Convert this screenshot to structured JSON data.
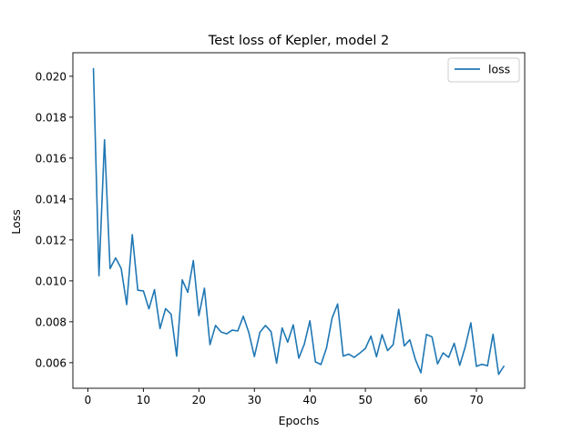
{
  "chart_data": {
    "type": "line",
    "title": "Test loss of Kepler, model 2",
    "xlabel": "Epochs",
    "ylabel": "Loss",
    "xlim": [
      -2.7,
      78.7
    ],
    "ylim": [
      0.00475,
      0.02115
    ],
    "xticks": [
      0,
      10,
      20,
      30,
      40,
      50,
      60,
      70
    ],
    "yticks": [
      0.006,
      0.008,
      0.01,
      0.012,
      0.014,
      0.016,
      0.018,
      0.02
    ],
    "ytick_labels": [
      "0.006",
      "0.008",
      "0.010",
      "0.012",
      "0.014",
      "0.016",
      "0.018",
      "0.020"
    ],
    "grid": false,
    "legend_position": "top-right",
    "series": [
      {
        "name": "loss",
        "color": "#1f77b4",
        "x": [
          1,
          2,
          3,
          4,
          5,
          6,
          7,
          8,
          9,
          10,
          11,
          12,
          13,
          14,
          15,
          16,
          17,
          18,
          19,
          20,
          21,
          22,
          23,
          24,
          25,
          26,
          27,
          28,
          29,
          30,
          31,
          32,
          33,
          34,
          35,
          36,
          37,
          38,
          39,
          40,
          41,
          42,
          43,
          44,
          45,
          46,
          47,
          48,
          49,
          50,
          51,
          52,
          53,
          54,
          55,
          56,
          57,
          58,
          59,
          60,
          61,
          62,
          63,
          64,
          65,
          66,
          67,
          68,
          69,
          70,
          71,
          72,
          73,
          74,
          75
        ],
        "values": [
          0.0204,
          0.01025,
          0.0169,
          0.0106,
          0.01112,
          0.01061,
          0.00884,
          0.01226,
          0.00954,
          0.00951,
          0.00863,
          0.00957,
          0.00767,
          0.00864,
          0.00837,
          0.00632,
          0.01005,
          0.00944,
          0.01099,
          0.0083,
          0.00964,
          0.00688,
          0.00782,
          0.0075,
          0.00741,
          0.00759,
          0.00755,
          0.00827,
          0.00747,
          0.0063,
          0.00749,
          0.00782,
          0.00752,
          0.00598,
          0.0077,
          0.007,
          0.00785,
          0.00622,
          0.00691,
          0.00805,
          0.00604,
          0.00591,
          0.00673,
          0.00818,
          0.00887,
          0.00632,
          0.00642,
          0.00626,
          0.00647,
          0.0067,
          0.0073,
          0.00629,
          0.00737,
          0.00659,
          0.00688,
          0.00861,
          0.00682,
          0.00712,
          0.00616,
          0.00551,
          0.00738,
          0.00726,
          0.00594,
          0.00648,
          0.00626,
          0.00695,
          0.00587,
          0.00679,
          0.00795,
          0.00582,
          0.00592,
          0.00585,
          0.00739,
          0.00543,
          0.00585
        ]
      }
    ]
  }
}
